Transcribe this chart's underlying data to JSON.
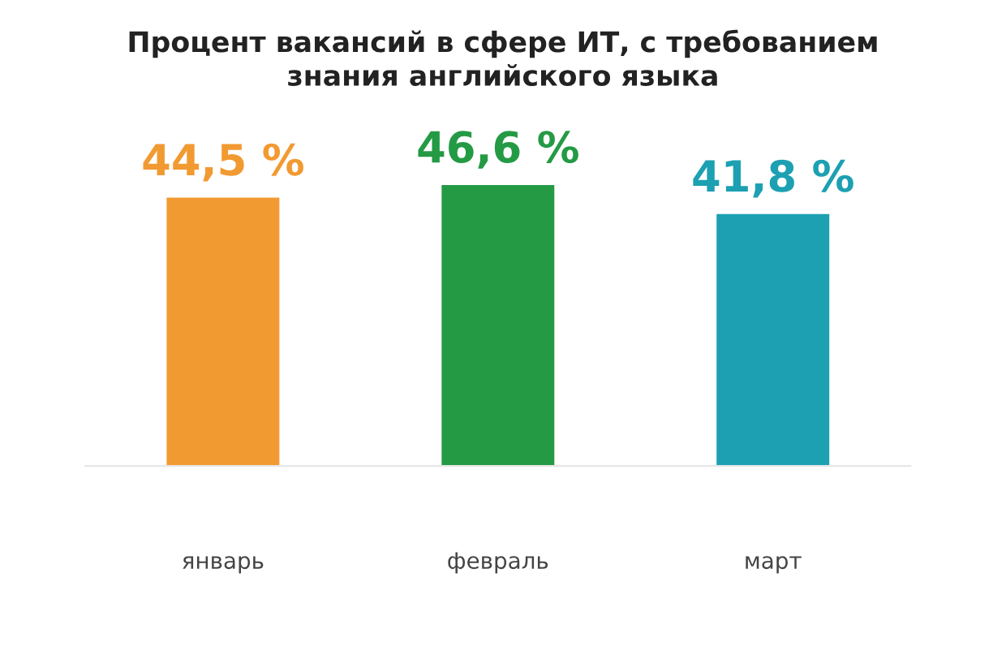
{
  "chart_data": {
    "type": "bar",
    "title": "Процент вакансий в сфере ИТ, с требованием\nзнания английского языка",
    "categories": [
      "январь",
      "февраль",
      "март"
    ],
    "values": [
      44.5,
      46.6,
      41.8
    ],
    "colors": [
      "#f29a32",
      "#249a45",
      "#1ca0b2"
    ],
    "value_labels": [
      "44,5 %",
      "46,6 %",
      "41,8 %"
    ],
    "grid": false,
    "legend": false
  }
}
